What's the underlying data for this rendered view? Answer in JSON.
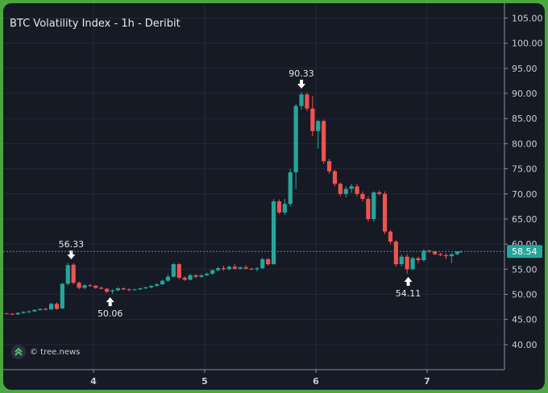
{
  "chart_data": {
    "type": "candlestick",
    "title": "BTC Volatility Index - 1h - Deribit",
    "x_ticks": [
      "4",
      "5",
      "6",
      "7"
    ],
    "y_ticks": [
      "40.00",
      "45.00",
      "50.00",
      "55.00",
      "60.00",
      "65.00",
      "70.00",
      "75.00",
      "80.00",
      "85.00",
      "90.00",
      "95.00",
      "100.00",
      "105.00"
    ],
    "ylim": [
      36,
      108
    ],
    "current_price": "58.54",
    "annotations": [
      {
        "label": "56.33",
        "value": 56.33,
        "x": 3.8,
        "dir": "down"
      },
      {
        "label": "50.06",
        "value": 50.06,
        "x": 4.15,
        "dir": "up"
      },
      {
        "label": "90.33",
        "value": 90.33,
        "x": 5.87,
        "dir": "down"
      },
      {
        "label": "54.11",
        "value": 54.11,
        "x": 6.83,
        "dir": "up"
      }
    ],
    "candles": [
      [
        3.12,
        46.3,
        46.4,
        46.2,
        46.4
      ],
      [
        3.17,
        46.4,
        46.4,
        46.1,
        46.2
      ],
      [
        3.22,
        46.2,
        46.3,
        46.1,
        46.1
      ],
      [
        3.27,
        46.1,
        46.3,
        45.9,
        46.0
      ],
      [
        3.32,
        46.0,
        46.4,
        45.9,
        46.3
      ],
      [
        3.37,
        46.3,
        46.6,
        46.1,
        46.5
      ],
      [
        3.42,
        46.5,
        46.8,
        46.3,
        46.6
      ],
      [
        3.47,
        46.6,
        47.0,
        46.5,
        46.9
      ],
      [
        3.52,
        46.9,
        47.2,
        46.7,
        47.1
      ],
      [
        3.57,
        47.1,
        47.3,
        46.8,
        47.0
      ],
      [
        3.62,
        47.0,
        48.3,
        46.9,
        48.1
      ],
      [
        3.67,
        48.1,
        48.4,
        46.9,
        47.1
      ],
      [
        3.72,
        47.2,
        52.3,
        47.1,
        52.1
      ],
      [
        3.77,
        52.1,
        56.3,
        51.8,
        55.8
      ],
      [
        3.82,
        55.9,
        56.2,
        52.0,
        52.3
      ],
      [
        3.87,
        52.3,
        52.6,
        51.0,
        51.3
      ],
      [
        3.92,
        51.3,
        52.0,
        51.0,
        51.8
      ],
      [
        3.97,
        51.8,
        52.1,
        51.5,
        51.7
      ],
      [
        4.02,
        51.7,
        51.9,
        51.1,
        51.3
      ],
      [
        4.07,
        51.3,
        51.6,
        51.0,
        51.1
      ],
      [
        4.12,
        51.1,
        51.3,
        50.3,
        50.5
      ],
      [
        4.17,
        50.6,
        51.0,
        50.1,
        50.8
      ],
      [
        4.22,
        50.8,
        51.4,
        50.6,
        51.2
      ],
      [
        4.27,
        51.2,
        51.4,
        50.8,
        51.0
      ],
      [
        4.32,
        51.0,
        51.2,
        50.6,
        50.9
      ],
      [
        4.37,
        50.9,
        51.1,
        50.7,
        51.0
      ],
      [
        4.42,
        51.0,
        51.3,
        50.8,
        51.2
      ],
      [
        4.47,
        51.2,
        51.5,
        51.0,
        51.4
      ],
      [
        4.52,
        51.4,
        51.8,
        51.2,
        51.7
      ],
      [
        4.57,
        51.7,
        52.2,
        51.5,
        52.0
      ],
      [
        4.62,
        52.0,
        52.9,
        51.9,
        52.7
      ],
      [
        4.67,
        52.7,
        54.0,
        52.5,
        53.5
      ],
      [
        4.72,
        53.5,
        56.2,
        53.4,
        56.0
      ],
      [
        4.77,
        56.0,
        56.2,
        53.0,
        53.3
      ],
      [
        4.82,
        53.3,
        53.6,
        52.7,
        52.9
      ],
      [
        4.87,
        52.9,
        54.1,
        52.8,
        53.8
      ],
      [
        4.92,
        53.8,
        54.0,
        53.2,
        53.5
      ],
      [
        4.97,
        53.5,
        54.0,
        53.3,
        53.8
      ],
      [
        5.02,
        53.8,
        54.3,
        53.6,
        54.1
      ],
      [
        5.07,
        54.1,
        55.0,
        53.9,
        54.8
      ],
      [
        5.12,
        54.8,
        55.5,
        54.6,
        55.2
      ],
      [
        5.17,
        55.2,
        55.7,
        54.7,
        55.0
      ],
      [
        5.22,
        55.0,
        55.7,
        54.8,
        55.5
      ],
      [
        5.27,
        55.5,
        56.0,
        54.9,
        55.1
      ],
      [
        5.32,
        55.1,
        55.5,
        54.9,
        55.4
      ],
      [
        5.37,
        55.4,
        55.8,
        55.0,
        55.1
      ],
      [
        5.42,
        55.1,
        55.3,
        54.8,
        55.0
      ],
      [
        5.47,
        55.0,
        55.4,
        54.6,
        55.2
      ],
      [
        5.52,
        55.2,
        57.3,
        55.0,
        57.0
      ],
      [
        5.57,
        57.0,
        57.2,
        55.7,
        56.0
      ],
      [
        5.62,
        56.0,
        69.0,
        55.9,
        68.5
      ],
      [
        5.67,
        68.5,
        68.9,
        66.0,
        66.3
      ],
      [
        5.72,
        66.3,
        69.0,
        65.8,
        68.0
      ],
      [
        5.77,
        68.0,
        75.0,
        67.5,
        74.3
      ],
      [
        5.82,
        74.3,
        87.9,
        71.0,
        87.5
      ],
      [
        5.87,
        87.5,
        90.3,
        86.8,
        89.8
      ],
      [
        5.92,
        89.8,
        90.2,
        86.5,
        87.0
      ],
      [
        5.97,
        87.0,
        89.5,
        81.5,
        82.5
      ],
      [
        6.02,
        82.5,
        84.8,
        79.0,
        84.5
      ],
      [
        6.07,
        84.5,
        84.8,
        76.0,
        76.5
      ],
      [
        6.12,
        76.5,
        77.0,
        74.0,
        74.5
      ],
      [
        6.17,
        74.5,
        74.8,
        71.5,
        72.0
      ],
      [
        6.22,
        72.0,
        72.3,
        69.5,
        70.0
      ],
      [
        6.27,
        70.0,
        71.5,
        69.3,
        71.0
      ],
      [
        6.32,
        71.0,
        72.0,
        70.2,
        71.5
      ],
      [
        6.37,
        71.5,
        72.0,
        69.5,
        70.0
      ],
      [
        6.42,
        70.0,
        70.5,
        68.5,
        69.0
      ],
      [
        6.47,
        69.0,
        69.5,
        64.5,
        65.0
      ],
      [
        6.52,
        65.0,
        70.5,
        64.5,
        70.3
      ],
      [
        6.57,
        70.3,
        70.7,
        69.7,
        70.0
      ],
      [
        6.62,
        70.0,
        70.5,
        62.0,
        62.5
      ],
      [
        6.67,
        62.5,
        62.8,
        60.0,
        60.5
      ],
      [
        6.72,
        60.5,
        60.8,
        55.5,
        56.0
      ],
      [
        6.77,
        56.0,
        58.0,
        55.5,
        57.5
      ],
      [
        6.82,
        57.5,
        58.0,
        54.1,
        55.0
      ],
      [
        6.87,
        55.0,
        57.5,
        54.8,
        57.2
      ],
      [
        6.92,
        57.2,
        57.5,
        56.2,
        56.8
      ],
      [
        6.97,
        56.8,
        59.0,
        56.5,
        58.7
      ],
      [
        7.02,
        58.7,
        58.9,
        58.2,
        58.5
      ],
      [
        7.07,
        58.5,
        58.7,
        57.8,
        58.0
      ],
      [
        7.12,
        58.0,
        58.3,
        57.6,
        57.8
      ],
      [
        7.17,
        57.8,
        58.2,
        57.0,
        57.6
      ],
      [
        7.22,
        57.6,
        58.2,
        56.2,
        58.0
      ],
      [
        7.27,
        58.0,
        58.6,
        57.8,
        58.5
      ],
      [
        7.3,
        58.5,
        58.7,
        58.3,
        58.54
      ]
    ]
  },
  "watermark": {
    "text": "© tree.news"
  },
  "colors": {
    "up": "#26a69a",
    "down": "#ef5350",
    "background": "#161a25",
    "grid": "#232836",
    "price_line": "#26a69a"
  }
}
